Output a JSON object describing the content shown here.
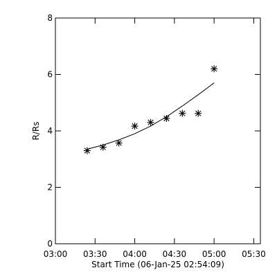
{
  "chart_data": {
    "type": "scatter",
    "xlabel": "Start Time (06-Jan-25 02:54:09)",
    "ylabel": "R/Rs",
    "xlim": [
      "03:00",
      "05:35"
    ],
    "ylim": [
      0,
      8
    ],
    "x_ticks": [
      "03:00",
      "03:30",
      "04:00",
      "04:30",
      "05:00",
      "05:30"
    ],
    "y_ticks": [
      "0",
      "2",
      "4",
      "6",
      "8"
    ],
    "grid": false,
    "series": [
      {
        "marker": "asterisk",
        "x": [
          "03:24",
          "03:36",
          "03:48",
          "04:00",
          "04:12",
          "04:24",
          "04:36",
          "04:48",
          "05:00"
        ],
        "y": [
          3.3,
          3.42,
          3.57,
          4.17,
          4.3,
          4.44,
          4.62,
          4.62,
          6.2
        ]
      }
    ],
    "fit_curve": {
      "type": "exponential",
      "x": [
        "03:24",
        "03:36",
        "03:48",
        "04:00",
        "04:12",
        "04:24",
        "04:36",
        "04:48",
        "05:00"
      ],
      "y": [
        3.35,
        3.5,
        3.68,
        3.9,
        4.17,
        4.5,
        4.88,
        5.28,
        5.7
      ]
    }
  }
}
